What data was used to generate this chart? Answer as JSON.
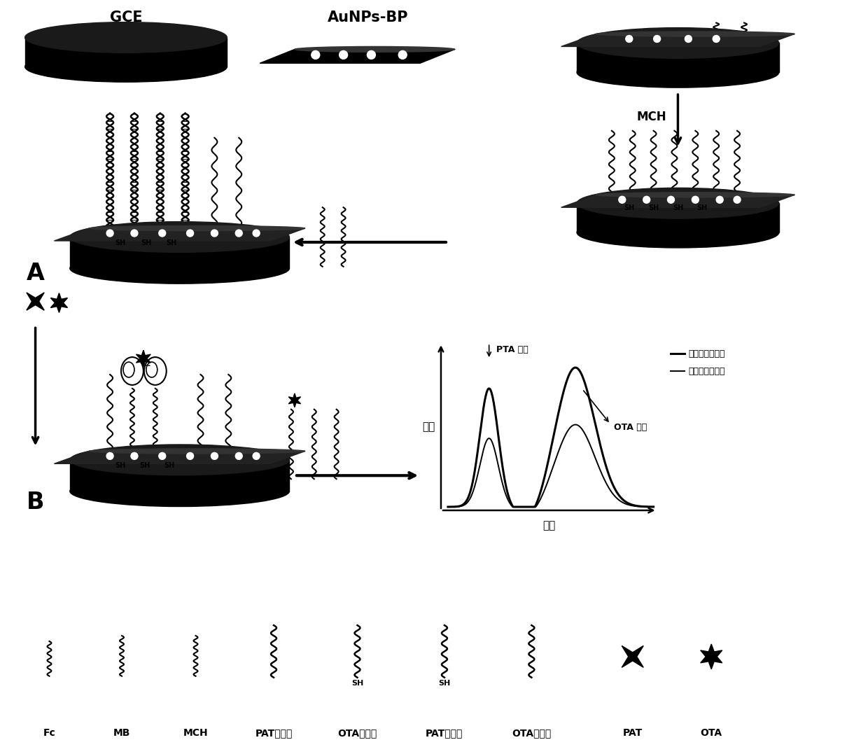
{
  "bg_color": "#ffffff",
  "text_color": "#000000",
  "labels_bottom": [
    "Fc",
    "MB",
    "MCH",
    "PAT互补镖",
    "OTA互补镖",
    "PAT适体镖",
    "OTA适体镖",
    "PAT",
    "OTA"
  ],
  "legend_before": "加入目标物之前",
  "legend_after": "加入目标物之后",
  "label_GCE": "GCE",
  "label_AuNPs": "AuNPs-BP",
  "label_MCH_arrow": "MCH",
  "label_SH1": "SH",
  "label_SH2": "SH",
  "label_PTA_signal": "PTA 信号",
  "label_OTA_signal": "OTA 信号",
  "label_dianwei": "电位",
  "label_dianliu": "电流",
  "label_A": "A",
  "label_B": "B"
}
